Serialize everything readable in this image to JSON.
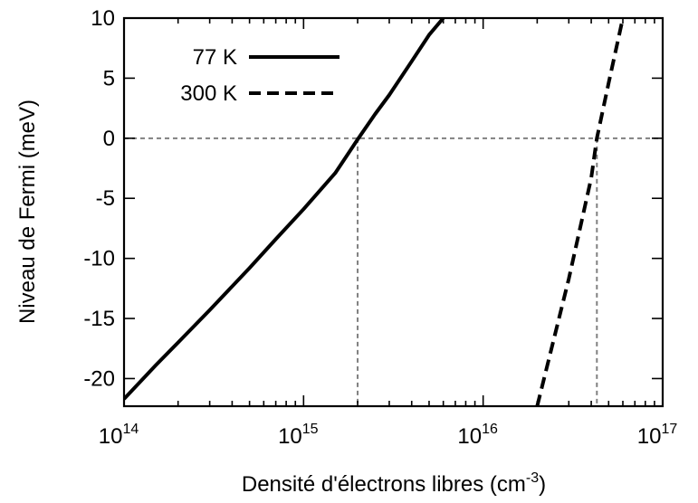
{
  "chart_data": {
    "type": "line",
    "xscale": "log",
    "xlim": [
      100000000000000.0,
      1e+17
    ],
    "ylim": [
      -22.3,
      10
    ],
    "xlabel": {
      "text": "Densité d'électrons libres (cm",
      "sup": "-3",
      "close": ")"
    },
    "ylabel": "Niveau de Fermi (meV)",
    "xticks": [
      {
        "value": 100000000000000.0,
        "base": "10",
        "exp": "14"
      },
      {
        "value": 1000000000000000.0,
        "base": "10",
        "exp": "15"
      },
      {
        "value": 1e+16,
        "base": "10",
        "exp": "16"
      },
      {
        "value": 1e+17,
        "base": "10",
        "exp": "17"
      }
    ],
    "yticks": [
      {
        "value": 10,
        "label": "10"
      },
      {
        "value": 5,
        "label": "5"
      },
      {
        "value": 0,
        "label": "0"
      },
      {
        "value": -5,
        "label": "-5"
      },
      {
        "value": -10,
        "label": "-10"
      },
      {
        "value": -15,
        "label": "-15"
      },
      {
        "value": -20,
        "label": "-20"
      }
    ],
    "grid": false,
    "legend_position": "top-left",
    "series": [
      {
        "name": "77 K",
        "style": "solid",
        "color": "#000000",
        "x": [
          100000000000000.0,
          150000000000000.0,
          200000000000000.0,
          300000000000000.0,
          500000000000000.0,
          700000000000000.0,
          1000000000000000.0,
          1500000000000000.0,
          2000000000000000.0,
          2500000000000000.0,
          3000000000000000.0,
          4000000000000000.0,
          5000000000000000.0,
          6000000000000000.0
        ],
        "y": [
          -21.7,
          -18.9,
          -17.0,
          -14.3,
          -10.8,
          -8.4,
          -5.9,
          -2.9,
          -0.1,
          2.0,
          3.6,
          6.4,
          8.6,
          10.0
        ]
      },
      {
        "name": "300 K",
        "style": "dashed",
        "color": "#000000",
        "x": [
          2e+16,
          3e+16,
          4e+16,
          4.3e+16,
          5e+16,
          6e+16
        ],
        "y": [
          -22.3,
          -11.7,
          -3.3,
          0.0,
          4.6,
          10.0
        ]
      }
    ],
    "reference_lines": [
      {
        "orientation": "horizontal",
        "value": 0,
        "style": "dashed",
        "color": "#808080"
      },
      {
        "orientation": "vertical",
        "value": 2000000000000000.0,
        "style": "dashed",
        "color": "#808080"
      },
      {
        "orientation": "vertical",
        "value": 4.3e+16,
        "style": "dashed",
        "color": "#808080"
      }
    ]
  }
}
